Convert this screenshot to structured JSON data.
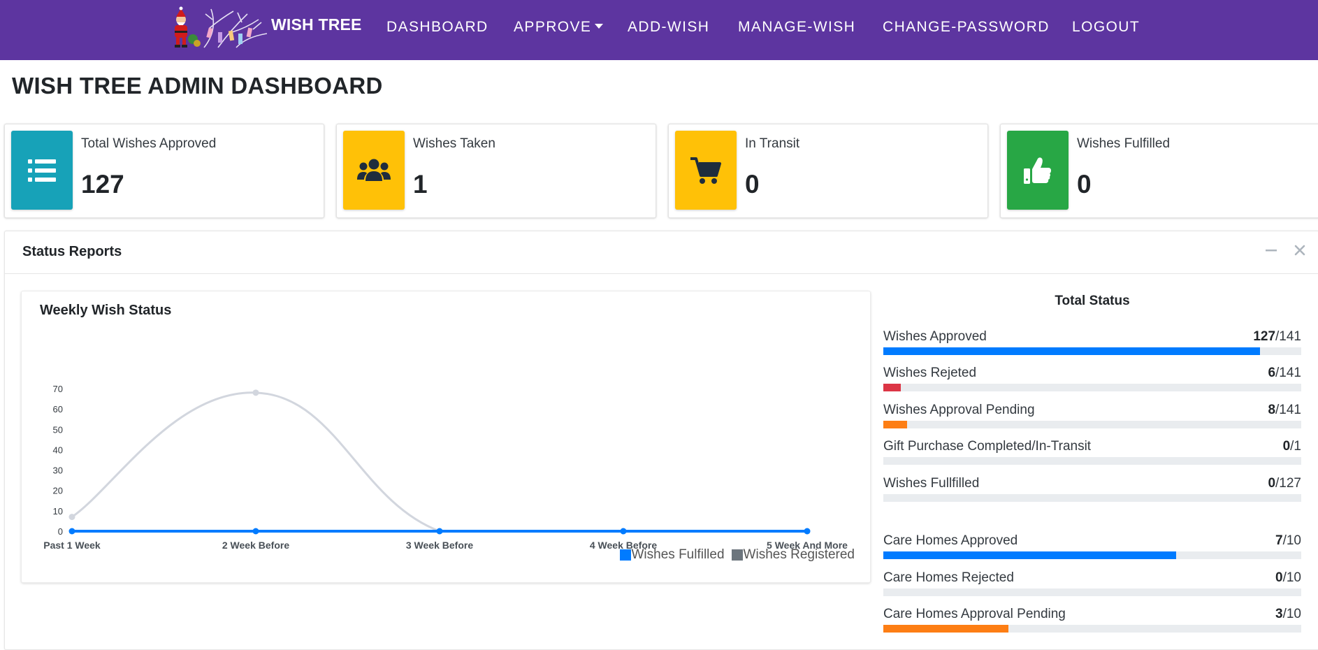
{
  "nav": {
    "brand": "WISH TREE",
    "items": [
      {
        "label": "DASHBOARD",
        "dropdown": false
      },
      {
        "label": "APPROVE",
        "dropdown": true
      },
      {
        "label": "ADD-WISH",
        "dropdown": false
      },
      {
        "label": "MANAGE-WISH",
        "dropdown": false
      },
      {
        "label": "CHANGE-PASSWORD",
        "dropdown": false
      },
      {
        "label": "LOGOUT",
        "dropdown": false
      }
    ]
  },
  "page_title": "WISH TREE ADMIN DASHBOARD",
  "info_boxes": [
    {
      "label": "Total Wishes Approved",
      "value": "127",
      "icon": "list-icon",
      "color": "#17a2b8"
    },
    {
      "label": "Wishes Taken",
      "value": "1",
      "icon": "users-icon",
      "color": "#ffc107"
    },
    {
      "label": "In Transit",
      "value": "0",
      "icon": "cart-icon",
      "color": "#ffc107"
    },
    {
      "label": "Wishes Fulfilled",
      "value": "0",
      "icon": "thumbs-up-icon",
      "color": "#28a745"
    }
  ],
  "status_reports": {
    "title": "Status Reports",
    "chart_title": "Weekly Wish Status"
  },
  "chart_data": {
    "type": "line",
    "title": "Weekly Wish Status",
    "categories": [
      "Past 1 Week",
      "2 Week Before",
      "3 Week Before",
      "4 Week Before",
      "5 Week And More"
    ],
    "series": [
      {
        "name": "Wishes Fulfilled",
        "values": [
          0,
          0,
          0,
          0,
          0
        ],
        "color": "#007bff"
      },
      {
        "name": "Wishes Registered",
        "values": [
          7,
          68,
          0,
          0,
          0
        ],
        "color": "#d2d6de"
      }
    ],
    "legend_swatches": [
      "#007bff",
      "#6c757d"
    ],
    "y_ticks": [
      0,
      10,
      20,
      30,
      40,
      50,
      60,
      70
    ],
    "ylim": [
      0,
      70
    ],
    "legend_position": "bottom-right",
    "grid": false
  },
  "total_status": {
    "title": "Total Status",
    "rows": [
      {
        "label": "Wishes Approved",
        "value": "127",
        "total": "/141",
        "fraction": 0.9007,
        "color": "#007bff"
      },
      {
        "label": "Wishes Rejeted",
        "value": "6",
        "total": "/141",
        "fraction": 0.0426,
        "color": "#dc3545"
      },
      {
        "label": "Wishes Approval Pending",
        "value": "8",
        "total": "/141",
        "fraction": 0.0567,
        "color": "#fd7e14"
      },
      {
        "label": "Gift Purchase Completed/In-Transit",
        "value": "0",
        "total": "/1",
        "fraction": 0,
        "color": "#007bff"
      },
      {
        "label": "Wishes Fullfilled",
        "value": "0",
        "total": "/127",
        "fraction": 0,
        "color": "#007bff"
      },
      {
        "label": "Care Homes Approved",
        "value": "7",
        "total": "/10",
        "fraction": 0.7,
        "color": "#007bff"
      },
      {
        "label": "Care Homes Rejected",
        "value": "0",
        "total": "/10",
        "fraction": 0,
        "color": "#dc3545"
      },
      {
        "label": "Care Homes Approval Pending",
        "value": "3",
        "total": "/10",
        "fraction": 0.3,
        "color": "#fd7e14"
      }
    ]
  }
}
